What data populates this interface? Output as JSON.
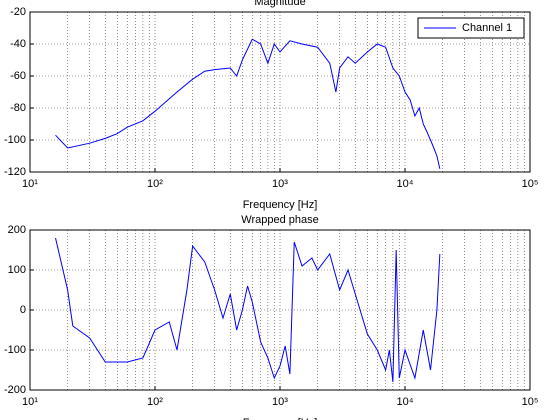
{
  "chart_data": [
    {
      "type": "line",
      "title": "Magnitude",
      "x_label": "Frequency [Hz]",
      "log_x": true,
      "grid": true,
      "legend": "northeast",
      "xlim": [
        10,
        100000
      ],
      "xticks": [
        {
          "value": 10,
          "label": "10¹"
        },
        {
          "value": 100,
          "label": "10²"
        },
        {
          "value": 1000,
          "label": "10³"
        },
        {
          "value": 10000,
          "label": "10⁴"
        },
        {
          "value": 100000,
          "label": "10⁵"
        }
      ],
      "ylim": [
        -120,
        -20
      ],
      "yticks": [
        -120,
        -100,
        -80,
        -60,
        -40,
        -20
      ],
      "x": [
        16,
        20,
        30,
        40,
        50,
        60,
        80,
        100,
        150,
        200,
        250,
        300,
        400,
        450,
        500,
        600,
        700,
        800,
        900,
        1000,
        1200,
        1500,
        2000,
        2500,
        2800,
        3000,
        3500,
        4000,
        5000,
        6000,
        7000,
        8000,
        9000,
        10000,
        11000,
        12000,
        13000,
        14000,
        15000,
        16000,
        17000,
        18000,
        19000
      ],
      "series": [
        {
          "name": "Channel 1",
          "color": "#0000ff",
          "values": [
            -97,
            -105,
            -102,
            -99,
            -96,
            -92,
            -88,
            -82,
            -70,
            -62,
            -57,
            -56,
            -55,
            -60,
            -50,
            -37,
            -40,
            -52,
            -40,
            -45,
            -38,
            -40,
            -42,
            -52,
            -70,
            -55,
            -48,
            -52,
            -45,
            -40,
            -42,
            -55,
            -60,
            -70,
            -75,
            -85,
            -80,
            -90,
            -95,
            -100,
            -105,
            -110,
            -118
          ]
        }
      ]
    },
    {
      "type": "line",
      "title": "Wrapped phase",
      "x_label": "Frequency [Hz]",
      "log_x": true,
      "grid": true,
      "xlim": [
        10,
        100000
      ],
      "xticks": [
        {
          "value": 10,
          "label": "10¹"
        },
        {
          "value": 100,
          "label": "10²"
        },
        {
          "value": 1000,
          "label": "10³"
        },
        {
          "value": 10000,
          "label": "10⁴"
        },
        {
          "value": 100000,
          "label": "10⁵"
        }
      ],
      "ylim": [
        -200,
        200
      ],
      "yticks": [
        -200,
        -100,
        0,
        100,
        200
      ],
      "x": [
        16,
        20,
        22,
        30,
        40,
        60,
        80,
        100,
        130,
        150,
        180,
        200,
        250,
        300,
        350,
        400,
        450,
        500,
        550,
        600,
        700,
        800,
        900,
        1000,
        1100,
        1200,
        1300,
        1500,
        1800,
        2000,
        2500,
        3000,
        3500,
        4000,
        5000,
        6000,
        7000,
        7500,
        8000,
        8500,
        9000,
        10000,
        12000,
        14000,
        16000,
        18000,
        19000
      ],
      "color": "#0000ff",
      "values": [
        180,
        50,
        -40,
        -70,
        -130,
        -130,
        -120,
        -50,
        -30,
        -100,
        50,
        160,
        120,
        50,
        -20,
        40,
        -50,
        0,
        60,
        20,
        -80,
        -120,
        -170,
        -140,
        -90,
        -160,
        170,
        110,
        130,
        100,
        140,
        50,
        100,
        40,
        -60,
        -100,
        -150,
        -100,
        -180,
        150,
        -170,
        -100,
        -170,
        -50,
        -150,
        0,
        140
      ]
    }
  ]
}
